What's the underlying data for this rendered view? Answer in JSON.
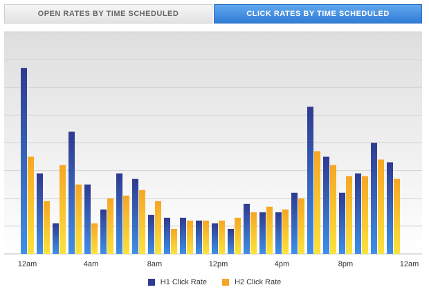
{
  "tabs": [
    {
      "label": "OPEN RATES BY TIME SCHEDULED",
      "active": false
    },
    {
      "label": "CLICK RATES BY TIME SCHEDULED",
      "active": true
    }
  ],
  "colors": {
    "h1_top": "#2f3a8f",
    "h1_bottom": "#3f8fe6",
    "h2_top": "#f6a623",
    "h2_bottom": "#fbe23c"
  },
  "chart_data": {
    "type": "bar",
    "title": "",
    "xlabel": "",
    "ylabel": "",
    "ylim": [
      0,
      8
    ],
    "y_tick_count": 9,
    "grid": true,
    "legend_position": "bottom-center",
    "x_tick_labels": [
      {
        "index": 0,
        "label": "12am"
      },
      {
        "index": 4,
        "label": "4am"
      },
      {
        "index": 8,
        "label": "8am"
      },
      {
        "index": 12,
        "label": "12pm"
      },
      {
        "index": 16,
        "label": "4pm"
      },
      {
        "index": 20,
        "label": "8pm"
      },
      {
        "index": 24,
        "label": "12am"
      }
    ],
    "categories": [
      "12am",
      "1am",
      "2am",
      "3am",
      "4am",
      "5am",
      "6am",
      "7am",
      "8am",
      "9am",
      "10am",
      "11am",
      "12pm",
      "1pm",
      "2pm",
      "3pm",
      "4pm",
      "5pm",
      "6pm",
      "7pm",
      "8pm",
      "9pm",
      "10pm",
      "11pm"
    ],
    "series": [
      {
        "name": "H1 Click Rate",
        "values": [
          6.7,
          2.9,
          1.1,
          4.4,
          2.5,
          1.6,
          2.9,
          2.7,
          1.4,
          1.3,
          1.3,
          1.2,
          1.1,
          0.9,
          1.8,
          1.5,
          1.5,
          2.2,
          5.3,
          3.5,
          2.2,
          2.9,
          4.0,
          3.3
        ]
      },
      {
        "name": "H2 Click Rate",
        "values": [
          3.5,
          1.9,
          3.2,
          2.5,
          1.1,
          2.0,
          2.1,
          2.3,
          1.9,
          0.9,
          1.2,
          1.2,
          1.2,
          1.3,
          1.5,
          1.7,
          1.6,
          2.0,
          3.7,
          3.2,
          2.8,
          2.8,
          3.4,
          2.7
        ]
      }
    ]
  }
}
